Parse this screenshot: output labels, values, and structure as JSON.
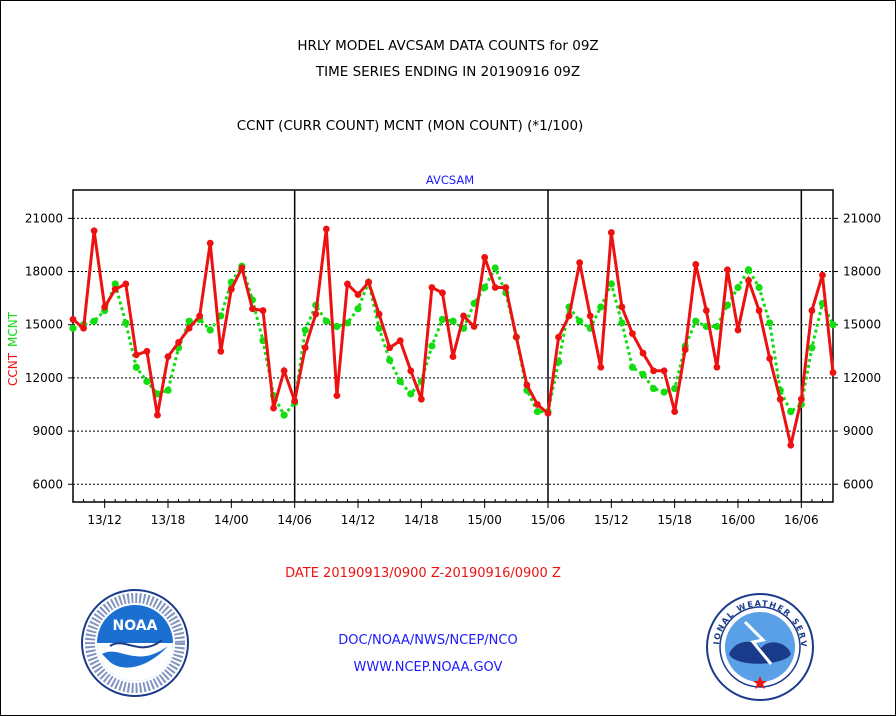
{
  "header": {
    "line1": "HRLY MODEL AVCSAM DATA COUNTS for 09Z",
    "line2": "TIME SERIES ENDING IN 20190916 09Z",
    "line3": "CCNT (CURR COUNT) MCNT (MON COUNT) (*1/100)"
  },
  "footer": {
    "date_range": "DATE 20190913/0900 Z-20190916/0900 Z",
    "org": "DOC/NOAA/NWS/NCEP/NCO",
    "url": "WWW.NCEP.NOAA.GOV"
  },
  "logos": {
    "left_name": "NOAA",
    "right_text": "NATIONAL WEATHER SERVICE"
  },
  "colors": {
    "ccnt": "#ee1111",
    "mcnt": "#11dd11",
    "label_blue": "#1a1aff"
  },
  "chart_data": {
    "type": "line",
    "title": "AVCSAM",
    "ylabel_left": [
      "CCNT",
      "MCNT"
    ],
    "x_tick_labels": [
      "13/12",
      "13/18",
      "14/00",
      "14/06",
      "14/12",
      "14/18",
      "15/00",
      "15/06",
      "15/12",
      "15/18",
      "16/00",
      "16/06"
    ],
    "x_ticks_hours": [
      3,
      9,
      15,
      21,
      27,
      33,
      39,
      45,
      51,
      57,
      63,
      69
    ],
    "x_range_hours": [
      0,
      72
    ],
    "day_boundaries_hours": [
      21,
      45,
      69
    ],
    "yticks": [
      6000,
      9000,
      12000,
      15000,
      18000,
      21000
    ],
    "ylim": [
      5000,
      22600
    ],
    "grid": "horizontal",
    "series": [
      {
        "name": "CCNT",
        "values": [
          15300,
          14800,
          20300,
          16000,
          17000,
          17300,
          13300,
          13500,
          9900,
          13200,
          14000,
          14800,
          15500,
          19600,
          13500,
          17000,
          18200,
          15900,
          15800,
          10300,
          12400,
          10700,
          13700,
          15600,
          20400,
          11000,
          17300,
          16700,
          17400,
          15600,
          13700,
          14100,
          12400,
          10800,
          17100,
          16800,
          13200,
          15500,
          14900,
          18800,
          17100,
          17100,
          14300,
          11600,
          10500,
          10000,
          14300,
          15500,
          18500,
          15500,
          12600,
          20200,
          16000,
          14500,
          13400,
          12400,
          12400,
          10100,
          13600,
          18400,
          15800,
          12600,
          18100,
          14700,
          17500,
          15800,
          13100,
          10800,
          8200,
          10800,
          15800,
          17800,
          12300
        ]
      },
      {
        "name": "MCNT",
        "values": [
          14800,
          15000,
          15200,
          15800,
          17300,
          15100,
          12600,
          11800,
          11100,
          11300,
          13700,
          15200,
          15300,
          14700,
          15500,
          17400,
          18300,
          16400,
          14100,
          11000,
          9900,
          10600,
          14700,
          16100,
          15200,
          14900,
          15100,
          15900,
          17400,
          14800,
          13000,
          11800,
          11100,
          11800,
          13800,
          15300,
          15200,
          14800,
          16200,
          17100,
          18200,
          16800,
          14300,
          11300,
          10100,
          10100,
          12900,
          16000,
          15200,
          14800,
          16000,
          17300,
          15100,
          12600,
          12200,
          11400,
          11200,
          11400,
          13800,
          15200,
          14900,
          14900,
          16100,
          17100,
          18100,
          17100,
          15100,
          11300,
          10100,
          10500,
          13700,
          16200,
          15000
        ]
      }
    ]
  }
}
